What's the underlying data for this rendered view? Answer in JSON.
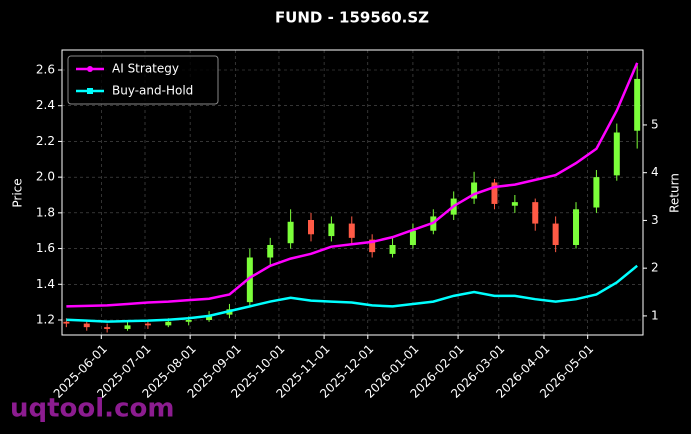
{
  "chart_data": {
    "type": "candlestick",
    "title": "FUND - 159560.SZ",
    "y_label": "Price",
    "y2_label": "Return",
    "watermark": "uqtool.com",
    "x": [
      "2025-05-08",
      "2025-05-22",
      "2025-06-05",
      "2025-06-19",
      "2025-07-03",
      "2025-07-17",
      "2025-07-31",
      "2025-08-14",
      "2025-08-28",
      "2025-09-11",
      "2025-09-25",
      "2025-10-09",
      "2025-10-23",
      "2025-11-06",
      "2025-11-20",
      "2025-12-04",
      "2025-12-18",
      "2026-01-01",
      "2026-01-15",
      "2026-01-29",
      "2026-02-12",
      "2026-02-26",
      "2026-03-12",
      "2026-03-26",
      "2026-04-09",
      "2026-04-23",
      "2026-05-07",
      "2026-05-21",
      "2026-06-04"
    ],
    "open": [
      1.19,
      1.18,
      1.16,
      1.15,
      1.18,
      1.17,
      1.19,
      1.2,
      1.23,
      1.3,
      1.55,
      1.63,
      1.76,
      1.67,
      1.74,
      1.65,
      1.57,
      1.62,
      1.7,
      1.79,
      1.88,
      1.97,
      1.84,
      1.86,
      1.74,
      1.62,
      1.83,
      2.01,
      2.26
    ],
    "high": [
      1.21,
      1.2,
      1.18,
      1.19,
      1.2,
      1.21,
      1.22,
      1.25,
      1.29,
      1.6,
      1.66,
      1.82,
      1.8,
      1.78,
      1.78,
      1.68,
      1.66,
      1.74,
      1.82,
      1.92,
      2.03,
      1.99,
      1.9,
      1.88,
      1.78,
      1.86,
      2.04,
      2.3,
      2.63
    ],
    "low": [
      1.16,
      1.14,
      1.13,
      1.14,
      1.15,
      1.16,
      1.17,
      1.19,
      1.21,
      1.28,
      1.5,
      1.6,
      1.64,
      1.64,
      1.62,
      1.55,
      1.55,
      1.6,
      1.68,
      1.76,
      1.85,
      1.82,
      1.8,
      1.7,
      1.58,
      1.6,
      1.8,
      1.98,
      2.16
    ],
    "close": [
      1.18,
      1.16,
      1.15,
      1.17,
      1.17,
      1.19,
      1.2,
      1.22,
      1.26,
      1.55,
      1.62,
      1.75,
      1.68,
      1.74,
      1.66,
      1.58,
      1.62,
      1.7,
      1.78,
      1.88,
      1.97,
      1.85,
      1.86,
      1.74,
      1.62,
      1.82,
      2.0,
      2.25,
      2.55
    ],
    "up_color": "#7cff3a",
    "down_color": "#ff5a45",
    "series": [
      {
        "name": "AI Strategy",
        "color": "#ff00ff",
        "axis": "y2",
        "values": [
          1.2,
          1.21,
          1.22,
          1.25,
          1.28,
          1.3,
          1.33,
          1.36,
          1.45,
          1.8,
          2.05,
          2.2,
          2.3,
          2.45,
          2.5,
          2.55,
          2.65,
          2.8,
          2.95,
          3.3,
          3.55,
          3.7,
          3.75,
          3.85,
          3.95,
          4.2,
          4.5,
          5.3,
          6.3
        ]
      },
      {
        "name": "Buy-and-Hold",
        "color": "#00ffff",
        "axis": "y2",
        "values": [
          0.92,
          0.9,
          0.88,
          0.89,
          0.9,
          0.92,
          0.95,
          1.0,
          1.1,
          1.2,
          1.3,
          1.38,
          1.32,
          1.3,
          1.28,
          1.22,
          1.2,
          1.25,
          1.3,
          1.42,
          1.5,
          1.42,
          1.42,
          1.35,
          1.3,
          1.35,
          1.45,
          1.7,
          2.05
        ]
      }
    ],
    "xlim": [
      "2025-05-05",
      "2026-06-08"
    ],
    "xticks": [
      "2025-06-01",
      "2025-07-01",
      "2025-08-01",
      "2025-09-01",
      "2025-10-01",
      "2025-11-01",
      "2025-12-01",
      "2026-01-01",
      "2026-02-01",
      "2026-03-01",
      "2026-04-01",
      "2026-05-01"
    ],
    "ylim": [
      1.116,
      2.712
    ],
    "yticks": [
      1.2,
      1.4,
      1.6,
      1.8,
      {
        "value": 2,
        "label": "2.0"
      },
      2.2,
      2.4,
      2.6
    ],
    "y2lim": [
      0.6,
      6.57
    ],
    "y2ticks": [
      1,
      2,
      3,
      4,
      5
    ],
    "grid": true,
    "legend": "upper left"
  }
}
